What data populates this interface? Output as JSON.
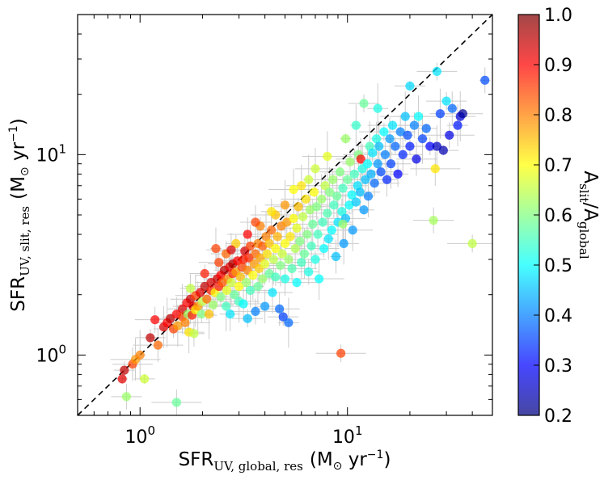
{
  "chart_data": {
    "type": "scatter",
    "title": "",
    "xlabel": {
      "main": "SFR",
      "sub": "UV, global, res",
      "units_prefix": "(M",
      "units_sun": "⊙",
      "units_mid": " yr",
      "units_sup": "−1",
      "units_suffix": ")"
    },
    "ylabel": {
      "main": "SFR",
      "sub": "UV, slit, res",
      "units_prefix": "(M",
      "units_sun": "⊙",
      "units_mid": " yr",
      "units_sup": "−1",
      "units_suffix": ")"
    },
    "xscale": "log",
    "yscale": "log",
    "xlim": [
      0.5,
      50
    ],
    "ylim": [
      0.5,
      50
    ],
    "x_ticks": [
      {
        "value": 1,
        "base": "10",
        "exp": "0"
      },
      {
        "value": 10,
        "base": "10",
        "exp": "1"
      }
    ],
    "y_ticks": [
      {
        "value": 1,
        "base": "10",
        "exp": "0"
      },
      {
        "value": 10,
        "base": "10",
        "exp": "1"
      }
    ],
    "reference_line": {
      "label": "",
      "relation": "y = x",
      "style": "dashed",
      "color": "#000000"
    },
    "grid": false,
    "legend": "none",
    "colorbar": {
      "label": {
        "main": "A",
        "sub1": "slit",
        "slash": "/A",
        "sub2": "global"
      },
      "range": [
        0.2,
        1.0
      ],
      "ticks": [
        "0.2",
        "0.3",
        "0.4",
        "0.5",
        "0.6",
        "0.7",
        "0.8",
        "0.9",
        "1.0"
      ],
      "colormap": "jet",
      "colors": [
        "#00007f",
        "#0000ff",
        "#007fff",
        "#00ffff",
        "#7fff7f",
        "#ffff00",
        "#ff7f00",
        "#ff0000",
        "#7f0000"
      ]
    },
    "errorbar_color": "#cccccc",
    "series": [
      {
        "points": [
          [
            0.82,
            0.76,
            0.92
          ],
          [
            0.84,
            0.84,
            0.95
          ],
          [
            0.86,
            0.62,
            0.62
          ],
          [
            0.92,
            0.9,
            0.85
          ],
          [
            0.95,
            0.95,
            0.78
          ],
          [
            1.0,
            1.0,
            0.8
          ],
          [
            1.05,
            0.76,
            0.66
          ],
          [
            1.12,
            1.22,
            0.95
          ],
          [
            1.18,
            1.5,
            0.9
          ],
          [
            1.22,
            1.12,
            0.82
          ],
          [
            1.3,
            1.38,
            0.93
          ],
          [
            1.35,
            1.45,
            0.9
          ],
          [
            1.4,
            1.52,
            0.95
          ],
          [
            1.45,
            1.35,
            0.85
          ],
          [
            1.5,
            0.58,
            0.58
          ],
          [
            1.5,
            1.6,
            0.9
          ],
          [
            1.52,
            1.4,
            0.78
          ],
          [
            1.6,
            1.7,
            0.93
          ],
          [
            1.6,
            1.55,
            0.85
          ],
          [
            1.65,
            1.45,
            0.8
          ],
          [
            1.68,
            1.82,
            0.9
          ],
          [
            1.7,
            1.6,
            0.62
          ],
          [
            1.72,
            1.3,
            0.72
          ],
          [
            1.75,
            1.9,
            0.94
          ],
          [
            1.78,
            1.58,
            0.88
          ],
          [
            1.8,
            1.75,
            0.92
          ],
          [
            1.82,
            1.28,
            0.65
          ],
          [
            1.85,
            1.68,
            0.7
          ],
          [
            1.85,
            1.98,
            0.85
          ],
          [
            1.9,
            1.75,
            0.78
          ],
          [
            1.95,
            2.05,
            0.92
          ],
          [
            1.98,
            1.6,
            0.6
          ],
          [
            2.0,
            1.85,
            0.65
          ],
          [
            2.05,
            2.2,
            0.95
          ],
          [
            2.1,
            1.9,
            0.82
          ],
          [
            2.15,
            1.6,
            0.75
          ],
          [
            2.2,
            2.1,
            0.88
          ],
          [
            2.2,
            2.3,
            0.93
          ],
          [
            2.25,
            1.78,
            0.62
          ],
          [
            2.3,
            2.05,
            0.7
          ],
          [
            2.32,
            3.4,
            0.85
          ],
          [
            2.35,
            2.4,
            0.94
          ],
          [
            2.4,
            2.2,
            0.88
          ],
          [
            2.45,
            1.95,
            0.6
          ],
          [
            2.45,
            2.5,
            0.9
          ],
          [
            2.5,
            2.3,
            0.83
          ],
          [
            2.55,
            2.65,
            0.95
          ],
          [
            2.6,
            1.75,
            0.55
          ],
          [
            2.62,
            2.1,
            0.68
          ],
          [
            2.65,
            2.4,
            0.8
          ],
          [
            2.7,
            2.75,
            0.92
          ],
          [
            2.72,
            1.6,
            0.48
          ],
          [
            2.75,
            2.3,
            0.66
          ],
          [
            2.8,
            2.55,
            0.87
          ],
          [
            2.8,
            2.85,
            0.96
          ],
          [
            2.85,
            2.0,
            0.58
          ],
          [
            2.9,
            2.6,
            0.78
          ],
          [
            2.95,
            2.95,
            0.9
          ],
          [
            3.0,
            1.85,
            0.55
          ],
          [
            3.0,
            2.2,
            0.7
          ],
          [
            3.05,
            2.45,
            0.75
          ],
          [
            3.1,
            2.75,
            0.85
          ],
          [
            3.15,
            3.0,
            0.88
          ],
          [
            3.15,
            1.8,
            0.5
          ],
          [
            3.2,
            3.3,
            0.93
          ],
          [
            3.25,
            2.3,
            0.62
          ],
          [
            3.3,
            2.65,
            0.8
          ],
          [
            3.3,
            1.52,
            0.45
          ],
          [
            3.35,
            3.05,
            0.87
          ],
          [
            3.4,
            2.1,
            0.55
          ],
          [
            3.4,
            3.5,
            0.85
          ],
          [
            3.5,
            2.5,
            0.7
          ],
          [
            3.55,
            2.85,
            0.78
          ],
          [
            3.6,
            3.2,
            0.82
          ],
          [
            3.6,
            1.65,
            0.4
          ],
          [
            3.7,
            2.2,
            0.58
          ],
          [
            3.7,
            3.6,
            0.8
          ],
          [
            3.75,
            2.7,
            0.74
          ],
          [
            3.8,
            3.05,
            0.77
          ],
          [
            3.9,
            2.4,
            0.62
          ],
          [
            3.9,
            3.5,
            0.83
          ],
          [
            4.0,
            1.75,
            0.42
          ],
          [
            4.0,
            2.85,
            0.68
          ],
          [
            4.05,
            3.9,
            0.8
          ],
          [
            4.1,
            3.2,
            0.72
          ],
          [
            4.2,
            2.55,
            0.58
          ],
          [
            4.2,
            3.6,
            0.75
          ],
          [
            4.3,
            4.2,
            0.82
          ],
          [
            4.35,
            2.05,
            0.48
          ],
          [
            4.4,
            3.0,
            0.65
          ],
          [
            4.5,
            3.4,
            0.7
          ],
          [
            4.5,
            2.45,
            0.55
          ],
          [
            4.6,
            3.9,
            0.76
          ],
          [
            4.7,
            1.7,
            0.38
          ],
          [
            4.75,
            2.8,
            0.6
          ],
          [
            4.8,
            4.4,
            0.8
          ],
          [
            4.85,
            3.2,
            0.66
          ],
          [
            4.9,
            1.55,
            0.35
          ],
          [
            5.0,
            3.6,
            0.7
          ],
          [
            5.0,
            2.4,
            0.52
          ],
          [
            5.1,
            4.6,
            0.78
          ],
          [
            5.2,
            1.45,
            0.38
          ],
          [
            5.2,
            3.0,
            0.62
          ],
          [
            5.3,
            3.9,
            0.72
          ],
          [
            5.4,
            2.7,
            0.56
          ],
          [
            5.5,
            4.8,
            0.7
          ],
          [
            5.6,
            3.4,
            0.64
          ],
          [
            5.7,
            4.3,
            0.68
          ],
          [
            5.7,
            2.3,
            0.5
          ],
          [
            5.8,
            5.5,
            0.75
          ],
          [
            5.9,
            3.7,
            0.6
          ],
          [
            6.0,
            2.9,
            0.55
          ],
          [
            6.1,
            4.9,
            0.65
          ],
          [
            6.2,
            3.2,
            0.58
          ],
          [
            6.3,
            6.0,
            0.72
          ],
          [
            6.4,
            4.0,
            0.6
          ],
          [
            6.5,
            2.6,
            0.52
          ],
          [
            6.6,
            5.3,
            0.62
          ],
          [
            6.7,
            3.5,
            0.55
          ],
          [
            6.8,
            4.5,
            0.58
          ],
          [
            6.9,
            6.5,
            0.7
          ],
          [
            7.0,
            3.0,
            0.52
          ],
          [
            7.1,
            5.5,
            0.6
          ],
          [
            7.2,
            4.0,
            0.55
          ],
          [
            7.3,
            2.4,
            0.5
          ],
          [
            7.5,
            6.0,
            0.62
          ],
          [
            7.6,
            4.6,
            0.55
          ],
          [
            7.7,
            3.4,
            0.5
          ],
          [
            7.8,
            7.0,
            0.65
          ],
          [
            8.0,
            5.1,
            0.56
          ],
          [
            8.1,
            3.8,
            0.48
          ],
          [
            8.2,
            6.5,
            0.6
          ],
          [
            8.4,
            4.2,
            0.5
          ],
          [
            8.5,
            7.5,
            0.62
          ],
          [
            8.6,
            5.6,
            0.55
          ],
          [
            8.8,
            3.1,
            0.45
          ],
          [
            8.9,
            6.2,
            0.58
          ],
          [
            9.0,
            4.6,
            0.48
          ],
          [
            9.2,
            8.2,
            0.6
          ],
          [
            9.3,
            1.02,
            0.85
          ],
          [
            9.4,
            5.2,
            0.52
          ],
          [
            9.5,
            6.8,
            0.55
          ],
          [
            9.6,
            3.6,
            0.42
          ],
          [
            9.8,
            4.8,
            0.45
          ],
          [
            10.0,
            7.5,
            0.58
          ],
          [
            10.2,
            5.6,
            0.5
          ],
          [
            10.3,
            9.2,
            0.62
          ],
          [
            10.5,
            6.3,
            0.5
          ],
          [
            10.6,
            4.2,
            0.42
          ],
          [
            10.8,
            8.0,
            0.55
          ],
          [
            11.0,
            5.8,
            0.46
          ],
          [
            11.2,
            7.0,
            0.48
          ],
          [
            11.3,
            10.0,
            0.6
          ],
          [
            11.5,
            6.5,
            0.45
          ],
          [
            11.6,
            9.5,
            0.9
          ],
          [
            11.8,
            8.5,
            0.52
          ],
          [
            12.0,
            5.3,
            0.42
          ],
          [
            12.0,
            18.0,
            0.58
          ],
          [
            12.2,
            7.5,
            0.45
          ],
          [
            12.5,
            9.0,
            0.5
          ],
          [
            12.6,
            6.2,
            0.4
          ],
          [
            12.8,
            11.0,
            0.55
          ],
          [
            13.0,
            8.0,
            0.44
          ],
          [
            13.2,
            10.2,
            0.48
          ],
          [
            13.5,
            7.2,
            0.38
          ],
          [
            13.8,
            12.0,
            0.52
          ],
          [
            14.0,
            9.0,
            0.42
          ],
          [
            14.2,
            11.0,
            0.45
          ],
          [
            14.5,
            8.2,
            0.36
          ],
          [
            15.0,
            13.0,
            0.5
          ],
          [
            15.2,
            10.0,
            0.4
          ],
          [
            15.5,
            7.5,
            0.33
          ],
          [
            16.0,
            12.0,
            0.42
          ],
          [
            16.2,
            9.0,
            0.35
          ],
          [
            16.5,
            14.0,
            0.48
          ],
          [
            17.0,
            11.0,
            0.38
          ],
          [
            17.5,
            8.0,
            0.3
          ],
          [
            18.0,
            13.0,
            0.4
          ],
          [
            18.5,
            10.0,
            0.33
          ],
          [
            19.0,
            15.5,
            0.45
          ],
          [
            19.5,
            12.5,
            0.36
          ],
          [
            20.0,
            11.0,
            0.32
          ],
          [
            21.0,
            14.0,
            0.4
          ],
          [
            21.5,
            9.5,
            0.28
          ],
          [
            22.0,
            15.5,
            0.5
          ],
          [
            23.0,
            12.0,
            0.35
          ],
          [
            24.0,
            13.5,
            0.38
          ],
          [
            25.0,
            11.0,
            0.3
          ],
          [
            26.0,
            4.7,
            0.63
          ],
          [
            26.5,
            8.5,
            0.72
          ],
          [
            27.0,
            11.0,
            0.25
          ],
          [
            28.0,
            16.0,
            0.35
          ],
          [
            29.0,
            10.5,
            0.24
          ],
          [
            30.0,
            18.5,
            0.48
          ],
          [
            31.0,
            12.5,
            0.28
          ],
          [
            32.0,
            17.0,
            0.38
          ],
          [
            34.0,
            14.0,
            0.32
          ],
          [
            35.0,
            15.5,
            0.27
          ],
          [
            36.0,
            16.0,
            0.22
          ],
          [
            40.0,
            3.6,
            0.65
          ],
          [
            46.0,
            23.5,
            0.36
          ],
          [
            9.5,
            4.5,
            0.62
          ],
          [
            6.0,
            7.0,
            0.72
          ],
          [
            5.0,
            5.6,
            0.78
          ],
          [
            4.5,
            5.0,
            0.75
          ],
          [
            3.8,
            4.4,
            0.8
          ],
          [
            4.3,
            5.2,
            0.72
          ],
          [
            3.6,
            4.6,
            0.85
          ],
          [
            7.0,
            8.5,
            0.66
          ],
          [
            8.0,
            9.8,
            0.68
          ],
          [
            9.8,
            12.0,
            0.62
          ],
          [
            2.9,
            3.6,
            0.74
          ],
          [
            2.6,
            3.2,
            0.82
          ],
          [
            3.3,
            4.0,
            0.9
          ],
          [
            5.5,
            6.7,
            0.7
          ],
          [
            6.5,
            7.5,
            0.66
          ],
          [
            1.75,
            2.15,
            0.65
          ],
          [
            2.05,
            2.55,
            0.88
          ],
          [
            2.4,
            2.9,
            0.85
          ],
          [
            2.75,
            3.35,
            0.93
          ],
          [
            11.0,
            14.0,
            0.54
          ],
          [
            14.0,
            17.0,
            0.52
          ],
          [
            20.0,
            22.0,
            0.47
          ],
          [
            27.0,
            26.0,
            0.48
          ]
        ]
      }
    ]
  }
}
